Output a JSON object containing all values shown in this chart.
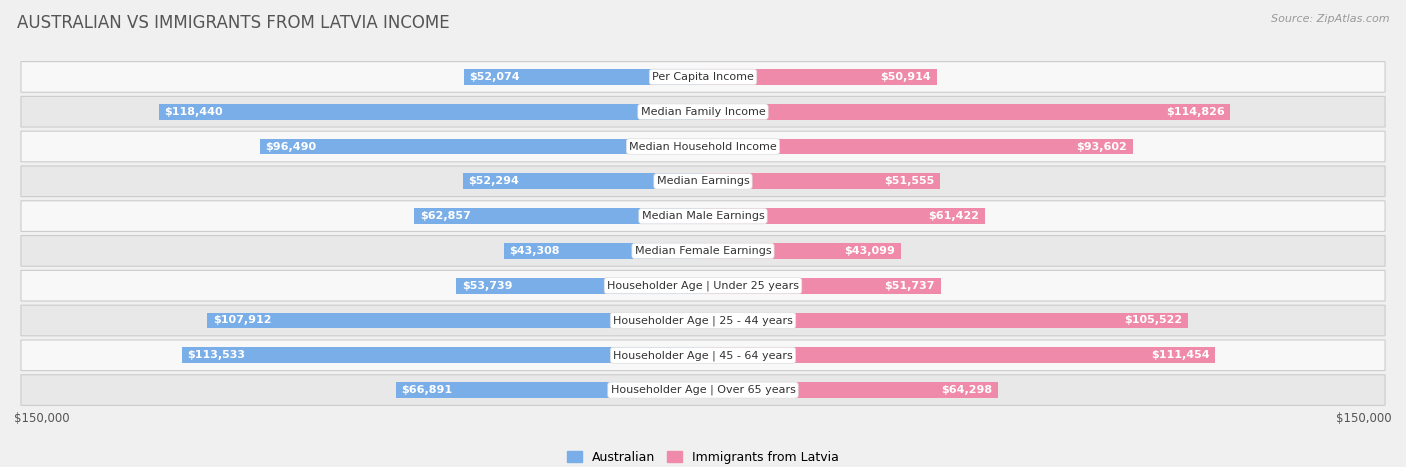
{
  "title": "AUSTRALIAN VS IMMIGRANTS FROM LATVIA INCOME",
  "source": "Source: ZipAtlas.com",
  "categories": [
    "Per Capita Income",
    "Median Family Income",
    "Median Household Income",
    "Median Earnings",
    "Median Male Earnings",
    "Median Female Earnings",
    "Householder Age | Under 25 years",
    "Householder Age | 25 - 44 years",
    "Householder Age | 45 - 64 years",
    "Householder Age | Over 65 years"
  ],
  "australian_values": [
    52074,
    118440,
    96490,
    52294,
    62857,
    43308,
    53739,
    107912,
    113533,
    66891
  ],
  "immigrant_values": [
    50914,
    114826,
    93602,
    51555,
    61422,
    43099,
    51737,
    105522,
    111454,
    64298
  ],
  "australian_labels": [
    "$52,074",
    "$118,440",
    "$96,490",
    "$52,294",
    "$62,857",
    "$43,308",
    "$53,739",
    "$107,912",
    "$113,533",
    "$66,891"
  ],
  "immigrant_labels": [
    "$50,914",
    "$114,826",
    "$93,602",
    "$51,555",
    "$61,422",
    "$43,099",
    "$51,737",
    "$105,522",
    "$111,454",
    "$64,298"
  ],
  "australian_color": "#7aaee8",
  "immigrant_color": "#f08aaa",
  "australian_dark_color": "#4a8ad4",
  "immigrant_dark_color": "#e0608a",
  "label_color_inside": "#ffffff",
  "label_color_outside": "#555555",
  "max_value": 150000,
  "bar_height": 0.45,
  "background_color": "#f0f0f0",
  "row_bg_light": "#f8f8f8",
  "row_bg_dark": "#e8e8e8",
  "legend_australian": "Australian",
  "legend_immigrant": "Immigrants from Latvia",
  "xlabel_left": "$150,000",
  "xlabel_right": "$150,000",
  "inside_label_threshold": 35000,
  "title_fontsize": 12,
  "label_fontsize": 8,
  "cat_fontsize": 8
}
